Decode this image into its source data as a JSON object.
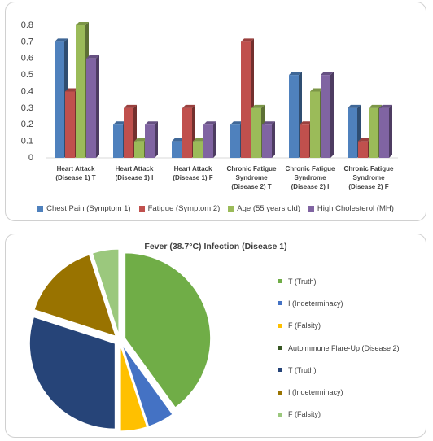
{
  "chart_data": [
    {
      "type": "bar3d",
      "categories": [
        "Heart Attack (Disease 1) T",
        "Heart Attack (Disease 1) I",
        "Heart Attack (Disease 1) F",
        "Chronic Fatigue Syndrome (Disease 2) T",
        "Chronic Fatigue Syndrome (Disease 2) I",
        "Chronic Fatigue Syndrome (Disease 2) F"
      ],
      "series": [
        {
          "name": "Chest Pain (Symptom 1)",
          "color": "#4f81bd",
          "values": [
            0.7,
            0.2,
            0.1,
            0.2,
            0.5,
            0.3
          ]
        },
        {
          "name": "Fatigue (Symptom 2)",
          "color": "#c0504d",
          "values": [
            0.4,
            0.3,
            0.3,
            0.7,
            0.2,
            0.1
          ]
        },
        {
          "name": "Age (55 years old)",
          "color": "#9bbb59",
          "values": [
            0.8,
            0.1,
            0.1,
            0.3,
            0.4,
            0.3
          ]
        },
        {
          "name": "High Cholesterol (MH)",
          "color": "#8064a2",
          "values": [
            0.6,
            0.2,
            0.2,
            0.2,
            0.5,
            0.3
          ]
        }
      ],
      "ylim": [
        0,
        0.8
      ],
      "yticks": [
        0,
        0.1,
        0.2,
        0.3,
        0.4,
        0.5,
        0.6,
        0.7,
        0.8
      ],
      "legend": "bottom"
    },
    {
      "type": "pie",
      "title": "Fever (38.7°C) Infection (Disease 1)",
      "categories": [
        "T (Truth)",
        "I (Indeterminacy)",
        "F (Falsity)",
        "Autoimmune Flare-Up (Disease 2)",
        "T (Truth)",
        "I (Indeterminacy)",
        "F (Falsity)"
      ],
      "values": [
        0.4,
        0.05,
        0.05,
        0,
        0.3,
        0.15,
        0.05
      ],
      "colors": [
        "#70ad47",
        "#4472c4",
        "#ffc000",
        "#375623",
        "#264478",
        "#997300",
        "#9bc87d"
      ],
      "legend": "right"
    }
  ]
}
